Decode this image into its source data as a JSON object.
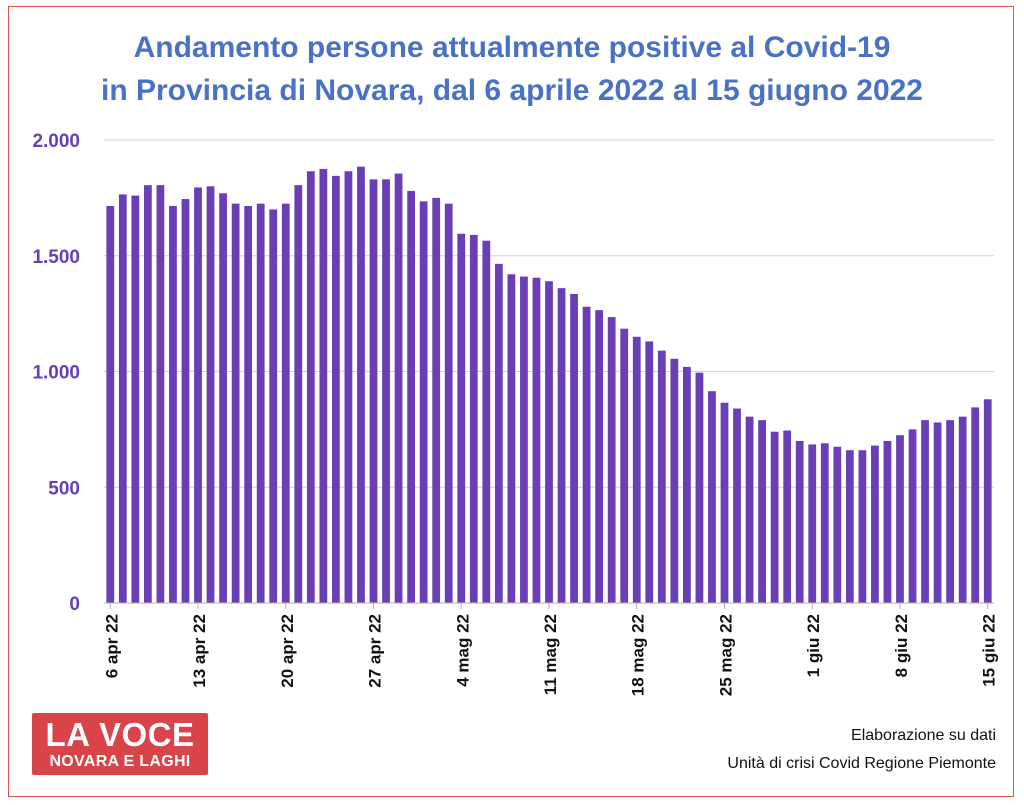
{
  "title": {
    "line1": "Andamento persone attualmente positive al Covid-19",
    "line2": "in Provincia di Novara, dal 6 aprile 2022 al 15 giugno 2022"
  },
  "logo": {
    "line1": "LA VOCE",
    "line2": "NOVARA E LAGHI"
  },
  "source": {
    "line1": "Elaborazione su dati",
    "line2": "Unità di crisi Covid Regione Piemonte"
  },
  "colors": {
    "bar": "#6a3fb5",
    "axis_text": "#6a3fb5",
    "title": "#4a72c4",
    "grid": "#d0d0d0",
    "frame": "#d9534f"
  },
  "chart_data": {
    "type": "bar",
    "title": "Andamento persone attualmente positive al Covid-19 in Provincia di Novara, dal 6 aprile 2022 al 15 giugno 2022",
    "xlabel": "",
    "ylabel": "",
    "ylim": [
      0,
      2000
    ],
    "yticks": [
      0,
      500,
      1000,
      1500,
      2000
    ],
    "ytick_labels": [
      "0",
      "500",
      "1.000",
      "1.500",
      "2.000"
    ],
    "grid": true,
    "xtick_labels": [
      {
        "index": 0,
        "label": "6 apr 22"
      },
      {
        "index": 7,
        "label": "13 apr 22"
      },
      {
        "index": 14,
        "label": "20 apr 22"
      },
      {
        "index": 21,
        "label": "27 apr 22"
      },
      {
        "index": 28,
        "label": "4 mag 22"
      },
      {
        "index": 35,
        "label": "11 mag 22"
      },
      {
        "index": 42,
        "label": "18 mag 22"
      },
      {
        "index": 49,
        "label": "25 mag 22"
      },
      {
        "index": 56,
        "label": "1 giu 22"
      },
      {
        "index": 63,
        "label": "8 giu 22"
      },
      {
        "index": 70,
        "label": "15 giu 22"
      }
    ],
    "start_date": "6 apr 22",
    "end_date": "15 giu 22",
    "values": [
      1715,
      1765,
      1760,
      1805,
      1805,
      1715,
      1745,
      1795,
      1800,
      1770,
      1725,
      1715,
      1725,
      1700,
      1725,
      1805,
      1865,
      1875,
      1845,
      1865,
      1885,
      1830,
      1830,
      1855,
      1780,
      1735,
      1750,
      1725,
      1595,
      1590,
      1565,
      1465,
      1420,
      1410,
      1405,
      1390,
      1360,
      1335,
      1280,
      1265,
      1235,
      1185,
      1150,
      1130,
      1090,
      1055,
      1020,
      995,
      915,
      865,
      840,
      805,
      790,
      740,
      745,
      700,
      685,
      690,
      675,
      660,
      660,
      680,
      700,
      725,
      750,
      790,
      780,
      790,
      805,
      845,
      880
    ]
  }
}
